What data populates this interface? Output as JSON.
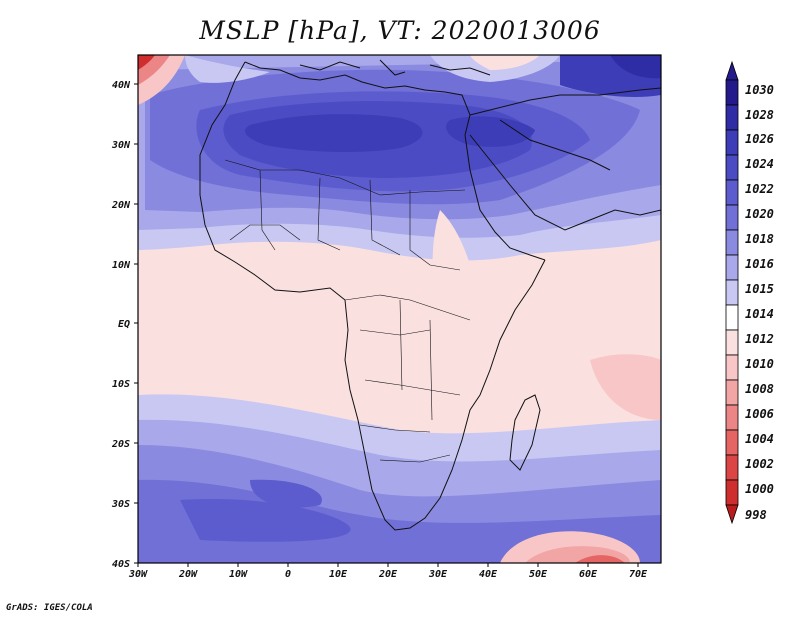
{
  "title": "MSLP [hPa], VT: 2020013006",
  "credit": "GrADS: IGES/COLA",
  "lat_labels": [
    "40N",
    "30N",
    "20N",
    "10N",
    "EQ",
    "10S",
    "20S",
    "30S",
    "40S"
  ],
  "lon_labels": [
    "30W",
    "20W",
    "10W",
    "0",
    "10E",
    "20E",
    "30E",
    "40E",
    "50E",
    "60E",
    "70E"
  ],
  "colorbar": {
    "levels": [
      "1030",
      "1028",
      "1026",
      "1024",
      "1022",
      "1020",
      "1018",
      "1016",
      "1015",
      "1014",
      "1012",
      "1010",
      "1008",
      "1006",
      "1004",
      "1002",
      "1000",
      "998"
    ],
    "colors": [
      "#241a8c",
      "#2f2da6",
      "#3d3db8",
      "#4b4bc4",
      "#5c5cce",
      "#7070d7",
      "#8a8ae0",
      "#a8a8ea",
      "#c8c8f3",
      "#ffffff",
      "#fbe0e0",
      "#f8c6c6",
      "#f2a5a5",
      "#ec8585",
      "#e56464",
      "#dc4545",
      "#cf2e2e",
      "#b91d1d"
    ]
  }
}
